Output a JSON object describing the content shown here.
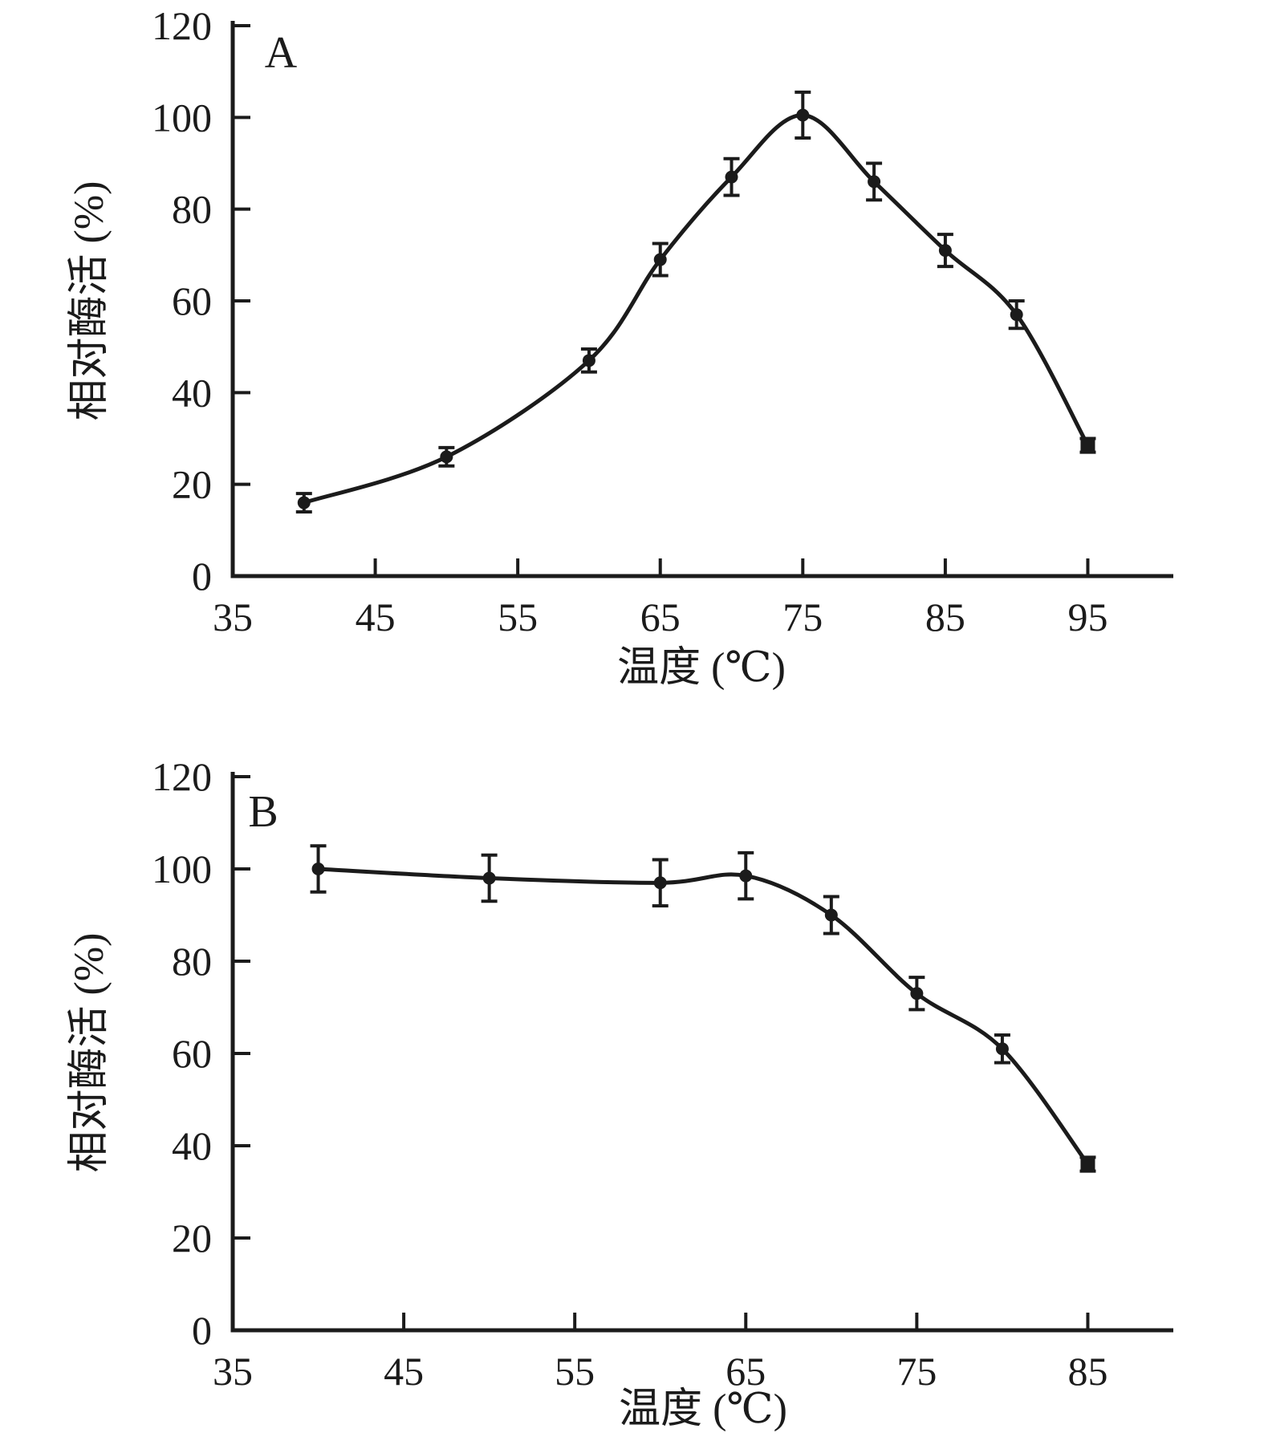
{
  "figure": {
    "background": "#ffffff",
    "ink_color": "#1b1b1b",
    "description_visible_text_only": true
  },
  "chart_data": [
    {
      "panel_label": "A",
      "type": "line",
      "title": "",
      "xlabel": "温度 (℃)",
      "ylabel": "相对酶活 (%)",
      "x": [
        40,
        50,
        60,
        65,
        70,
        75,
        80,
        85,
        90,
        95
      ],
      "y": [
        16,
        26,
        47,
        69,
        87,
        100.5,
        86,
        71,
        57,
        28.5
      ],
      "yerr": [
        2,
        2,
        2.5,
        3.5,
        4,
        5,
        4,
        3.5,
        3,
        1.5
      ],
      "xlim": [
        35,
        101
      ],
      "ylim": [
        0,
        120
      ],
      "xticks": [
        35,
        45,
        55,
        65,
        75,
        85,
        95
      ],
      "yticks": [
        0,
        20,
        40,
        60,
        80,
        100,
        120
      ],
      "grid": false,
      "legend": null,
      "line_color": "#1b1b1b",
      "marker": "circle",
      "last_point_marker": "square",
      "error_bars": "vertical-with-caps"
    },
    {
      "panel_label": "B",
      "type": "line",
      "title": "",
      "xlabel": "温度 (℃)",
      "ylabel": "相对酶活 (%)",
      "x": [
        40,
        50,
        60,
        65,
        70,
        75,
        80,
        85
      ],
      "y": [
        100,
        98,
        97,
        98.5,
        90,
        73,
        61,
        36
      ],
      "yerr": [
        5,
        5,
        5,
        5,
        4,
        3.5,
        3,
        1.5
      ],
      "xlim": [
        35,
        90
      ],
      "ylim": [
        0,
        120
      ],
      "xticks": [
        35,
        45,
        55,
        65,
        75,
        85
      ],
      "yticks": [
        0,
        20,
        40,
        60,
        80,
        100,
        120
      ],
      "grid": false,
      "legend": null,
      "line_color": "#1b1b1b",
      "marker": "circle",
      "last_point_marker": "square",
      "error_bars": "vertical-with-caps"
    }
  ]
}
